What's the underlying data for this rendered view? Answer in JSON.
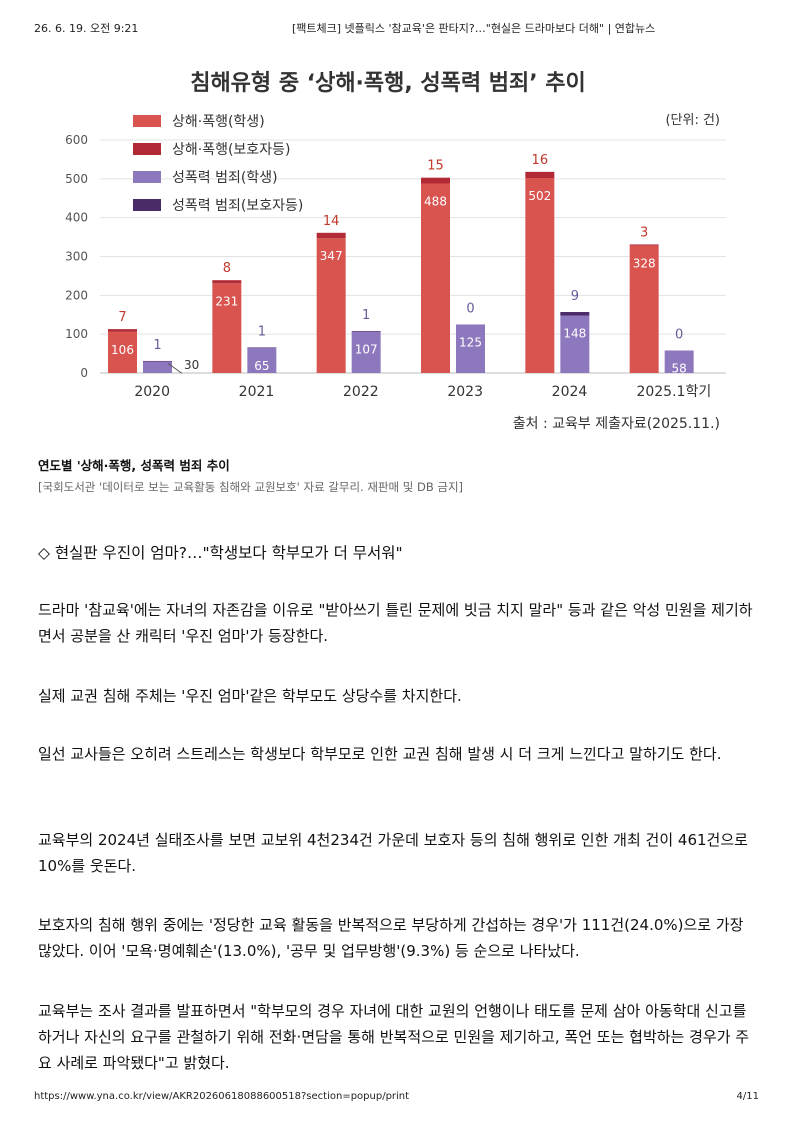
{
  "browser": {
    "datetime": "26. 6. 19. 오전 9:21",
    "title": "[팩트체크] 넷플릭스 '참교육'은 판타지?…\"현실은 드라마보다 더해\" | 연합뉴스",
    "url": "https://www.yna.co.kr/view/AKR20260618088600518?section=popup/print",
    "page": "4/11"
  },
  "chart_data": {
    "type": "bar",
    "title": "침해유형 중 ‘상해·폭행, 성폭력 범죄’ 추이",
    "unit_label": "(단위: 건)",
    "source": "출처 : 교육부 제출자료(2025.11.)",
    "categories": [
      "2020",
      "2021",
      "2022",
      "2023",
      "2024",
      "2025.1학기"
    ],
    "ylim": [
      0,
      600
    ],
    "yticks": [
      "0",
      "100",
      "200",
      "300",
      "400",
      "500",
      "600"
    ],
    "grid": true,
    "legend_position": "top-left",
    "series": [
      {
        "name": "상해·폭행(학생)",
        "color": "#d9534f",
        "stack": "A",
        "values": [
          106,
          231,
          347,
          488,
          502,
          328
        ]
      },
      {
        "name": "상해·폭행(보호자등)",
        "color": "#b22a35",
        "stack": "A",
        "values": [
          7,
          8,
          14,
          15,
          16,
          3
        ]
      },
      {
        "name": "성폭력 범죄(학생)",
        "color": "#8e78bd",
        "stack": "B",
        "values": [
          30,
          65,
          107,
          125,
          148,
          58
        ]
      },
      {
        "name": "성폭력 범죄(보호자등)",
        "color": "#4b2a68",
        "stack": "B",
        "values": [
          1,
          1,
          1,
          0,
          9,
          0
        ]
      }
    ]
  },
  "caption": "연도별 '상해·폭행, 성폭력 범죄 추이",
  "credit": "[국회도서관 '데이터로 보는 교육활동 침해와 교원보호' 자료 갈무리. 재판매 및 DB 금지]",
  "subheading": "◇ 현실판 우진이 엄마?…\"학생보다 학부모가 더 무서워\"",
  "paragraphs": [
    "드라마 '참교육'에는 자녀의 자존감을 이유로 \"받아쓰기 틀린 문제에 빗금 치지 말라\" 등과 같은 악성 민원을 제기하면서 공분을 산 캐릭터 '우진 엄마'가 등장한다.",
    "실제 교권 침해 주체는 '우진 엄마'같은 학부모도 상당수를 차지한다.",
    "일선 교사들은 오히려 스트레스는 학생보다 학부모로 인한 교권 침해 발생 시 더 크게 느낀다고 말하기도 한다.",
    "교육부의 2024년 실태조사를 보면 교보위 4천234건 가운데 보호자 등의 침해 행위로 인한 개최 건이 461건으로 10%를 웃돈다.",
    "보호자의 침해 행위 중에는 '정당한 교육 활동을 반복적으로 부당하게 간섭하는 경우'가 111건(24.0%)으로 가장 많았다. 이어 '모욕·명예훼손'(13.0%), '공무 및 업무방행'(9.3%) 등 순으로 나타났다.",
    "교육부는 조사 결과를 발표하면서 \"학부모의 경우 자녀에 대한 교원의 언행이나 태도를 문제 삼아 아동학대 신고를 하거나 자신의 요구를 관철하기 위해 전화·면담을 통해 반복적으로 민원을 제기하고, 폭언 또는 협박하는 경우가 주요 사례로 파악됐다\"고 밝혔다."
  ]
}
